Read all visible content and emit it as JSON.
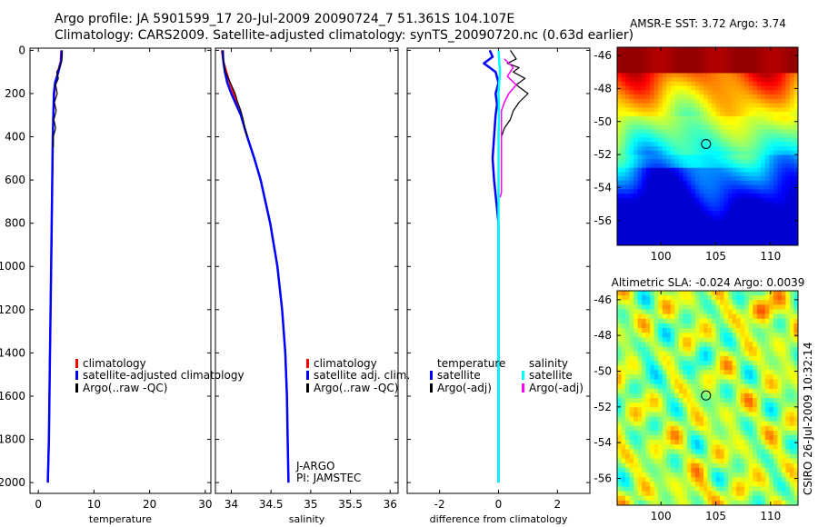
{
  "header": {
    "line1": "Argo profile: JA 5901599_17 20-Jul-2009 20090724_7 51.361S 104.107E",
    "line2": "Climatology: CARS2009. Satellite-adjusted climatology: synTS_20090720.nc (0.63d earlier)"
  },
  "side_stamp": "CSIRO 26-Jul-2009 10:32:14",
  "colors": {
    "climatology": "#ff0000",
    "satellite": "#0000ff",
    "argo": "#000000",
    "sal_satellite": "#00ffff",
    "sal_argo": "#ff00ff",
    "map_marker": "#000000"
  },
  "chart_data": [
    {
      "type": "line",
      "name": "temperature-profile",
      "xlabel": "temperature",
      "ylabel": "",
      "xlim": [
        -1.5,
        31
      ],
      "ylim": [
        2050,
        -10
      ],
      "xticks": [
        0,
        10,
        20,
        30
      ],
      "yticks": [
        0,
        200,
        400,
        600,
        800,
        1000,
        1200,
        1400,
        1600,
        1800,
        2000
      ],
      "legend": [
        "climatology",
        "satellite-adjusted climatology",
        "Argo(..raw -QC)"
      ],
      "series": [
        {
          "name": "climatology",
          "color": "climatology",
          "width": 2,
          "depth": [
            0,
            50,
            100,
            150,
            200,
            300,
            400,
            600,
            800,
            1000,
            1400,
            1800,
            2000
          ],
          "values": [
            4.1,
            4.0,
            3.5,
            3.1,
            2.9,
            2.7,
            2.6,
            2.5,
            2.4,
            2.3,
            2.1,
            1.9,
            1.7
          ]
        },
        {
          "name": "satellite-adjusted climatology",
          "color": "satellite",
          "width": 2.5,
          "depth": [
            0,
            50,
            100,
            150,
            200,
            300,
            400,
            600,
            800,
            1000,
            1400,
            1800,
            2000
          ],
          "values": [
            4.2,
            4.1,
            3.6,
            3.0,
            2.8,
            2.7,
            2.6,
            2.5,
            2.4,
            2.3,
            2.1,
            1.9,
            1.7
          ]
        },
        {
          "name": "Argo(..raw -QC)",
          "color": "argo",
          "width": 1.2,
          "depth": [
            0,
            20,
            50,
            80,
            100,
            130,
            160,
            200,
            240,
            280,
            320,
            360,
            400,
            450
          ],
          "values": [
            4.3,
            4.3,
            4.2,
            3.8,
            3.3,
            3.6,
            3.1,
            3.4,
            2.9,
            3.2,
            2.8,
            3.1,
            2.7,
            2.7
          ]
        }
      ]
    },
    {
      "type": "line",
      "name": "salinity-profile",
      "xlabel": "salinity",
      "ylabel": "",
      "xlim": [
        33.8,
        36.1
      ],
      "ylim": [
        2050,
        -10
      ],
      "xticks": [
        34,
        34.5,
        35,
        35.5,
        36
      ],
      "yticks": [
        0,
        200,
        400,
        600,
        800,
        1000,
        1200,
        1400,
        1600,
        1800,
        2000
      ],
      "legend": [
        "climatology",
        "satellite adj. clim.",
        "Argo(..raw -QC)"
      ],
      "annotation": [
        "J-ARGO",
        "PI: JAMSTEC"
      ],
      "series": [
        {
          "name": "climatology",
          "color": "climatology",
          "width": 2,
          "depth": [
            0,
            50,
            100,
            150,
            200,
            250,
            300,
            400,
            500,
            600,
            800,
            1000,
            1200,
            1400,
            1600,
            1800,
            2000
          ],
          "values": [
            33.88,
            33.9,
            33.94,
            33.98,
            34.03,
            34.07,
            34.12,
            34.2,
            34.29,
            34.37,
            34.49,
            34.58,
            34.64,
            34.68,
            34.7,
            34.71,
            34.72
          ]
        },
        {
          "name": "satellite adj. clim.",
          "color": "satellite",
          "width": 2.5,
          "depth": [
            0,
            50,
            100,
            150,
            200,
            250,
            300,
            400,
            500,
            600,
            800,
            1000,
            1200,
            1400,
            1600,
            1800,
            2000
          ],
          "values": [
            33.89,
            33.9,
            33.92,
            33.95,
            34.0,
            34.06,
            34.12,
            34.2,
            34.29,
            34.37,
            34.49,
            34.58,
            34.64,
            34.68,
            34.7,
            34.71,
            34.72
          ]
        },
        {
          "name": "Argo(..raw -QC)",
          "color": "argo",
          "width": 1.2,
          "depth": [
            0,
            40,
            80,
            120,
            160,
            200,
            240,
            280,
            320,
            360,
            400
          ],
          "values": [
            33.9,
            33.9,
            33.91,
            33.95,
            34.0,
            34.05,
            34.08,
            34.12,
            34.15,
            34.17,
            34.2
          ]
        }
      ]
    },
    {
      "type": "line",
      "name": "difference-profile",
      "xlabel": "difference from climatology",
      "ylabel": "",
      "xlim": [
        -3.1,
        3.1
      ],
      "ylim": [
        2050,
        -10
      ],
      "xticks": [
        -2,
        0,
        2
      ],
      "yticks": [
        0,
        200,
        400,
        600,
        800,
        1000,
        1200,
        1400,
        1600,
        1800,
        2000
      ],
      "legend_titles": [
        "temperature",
        "salinity"
      ],
      "legend": [
        "satellite",
        "Argo(-adj)",
        "satellite",
        "Argo(-adj)"
      ],
      "series": [
        {
          "name": "temperature satellite",
          "color": "satellite",
          "width": 2.5,
          "depth": [
            0,
            30,
            60,
            80,
            100,
            150,
            200,
            250,
            300,
            400,
            500,
            600,
            800,
            1000,
            1400,
            2000
          ],
          "values": [
            -0.3,
            -0.2,
            -0.5,
            -0.3,
            -0.1,
            0.0,
            -0.1,
            -0.05,
            -0.1,
            -0.15,
            -0.2,
            -0.15,
            0.0,
            0.0,
            0.0,
            0.0
          ]
        },
        {
          "name": "temperature Argo(-adj)",
          "color": "argo",
          "width": 1.2,
          "depth": [
            0,
            40,
            60,
            80,
            100,
            130,
            160,
            200,
            240,
            280,
            320,
            360,
            400
          ],
          "values": [
            0.4,
            0.6,
            0.3,
            0.7,
            0.5,
            0.9,
            0.6,
            1.0,
            0.7,
            0.5,
            0.4,
            0.2,
            0.1
          ]
        },
        {
          "name": "salinity satellite",
          "color": "sal_satellite",
          "width": 2.5,
          "depth": [
            0,
            100,
            200,
            300,
            400,
            600,
            800,
            1000,
            1400,
            2000
          ],
          "values": [
            0.0,
            0.05,
            0.0,
            0.02,
            0.0,
            0.0,
            0.0,
            0.0,
            0.0,
            0.0
          ]
        },
        {
          "name": "salinity Argo(-adj)",
          "color": "sal_argo",
          "width": 1.5,
          "depth": [
            40,
            80,
            120,
            160,
            200,
            240,
            280,
            640,
            660,
            680
          ],
          "values": [
            0.2,
            0.5,
            0.3,
            0.6,
            0.35,
            0.2,
            0.1,
            0.1,
            0.1,
            0.05
          ]
        }
      ]
    },
    {
      "type": "heatmap",
      "name": "sst-map",
      "title": "AMSR-E SST: 3.72 Argo: 3.74",
      "xlim": [
        96,
        112.5
      ],
      "ylim": [
        -57.5,
        -45.5
      ],
      "xticks": [
        100,
        105,
        110
      ],
      "yticks": [
        -46,
        -48,
        -50,
        -52,
        -54,
        -56
      ],
      "marker": [
        104.107,
        -51.361
      ]
    },
    {
      "type": "heatmap",
      "name": "sla-map",
      "title": "Altimetric SLA: -0.024 Argo: 0.0039",
      "xlim": [
        96,
        112.5
      ],
      "ylim": [
        -57.5,
        -45.5
      ],
      "xticks": [
        100,
        105,
        110
      ],
      "yticks": [
        -46,
        -48,
        -50,
        -52,
        -54,
        -56
      ],
      "marker": [
        104.107,
        -51.361
      ]
    }
  ]
}
